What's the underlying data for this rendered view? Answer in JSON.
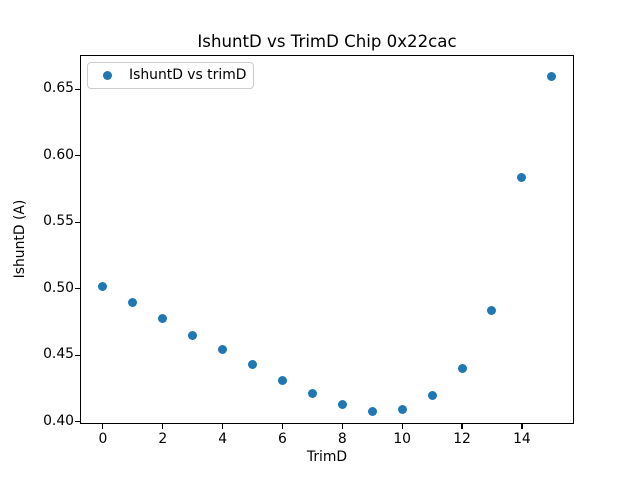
{
  "chart_data": {
    "type": "scatter",
    "title": "IshuntD vs TrimD Chip 0x22cac",
    "xlabel": "TrimD",
    "ylabel": "IshuntD (A)",
    "legend": [
      {
        "label": "IshuntD vs trimD",
        "marker_color": "#1f77b4"
      }
    ],
    "legend_position": "upper left",
    "marker_color": "#1f77b4",
    "grid": false,
    "x": [
      0,
      1,
      2,
      3,
      4,
      5,
      6,
      7,
      8,
      9,
      10,
      11,
      12,
      13,
      14,
      15
    ],
    "y": [
      0.502,
      0.49,
      0.478,
      0.465,
      0.454,
      0.443,
      0.431,
      0.421,
      0.413,
      0.408,
      0.409,
      0.42,
      0.44,
      0.484,
      0.584,
      0.66
    ],
    "xticks": [
      0,
      2,
      4,
      6,
      8,
      10,
      12,
      14
    ],
    "xtick_labels": [
      "0",
      "2",
      "4",
      "6",
      "8",
      "10",
      "12",
      "14"
    ],
    "yticks": [
      0.4,
      0.45,
      0.5,
      0.55,
      0.6,
      0.65
    ],
    "ytick_labels": [
      "0.40",
      "0.45",
      "0.50",
      "0.55",
      "0.60",
      "0.65"
    ],
    "xlim": [
      -0.765,
      15.74
    ],
    "ylim": [
      0.3983,
      0.6758
    ]
  }
}
